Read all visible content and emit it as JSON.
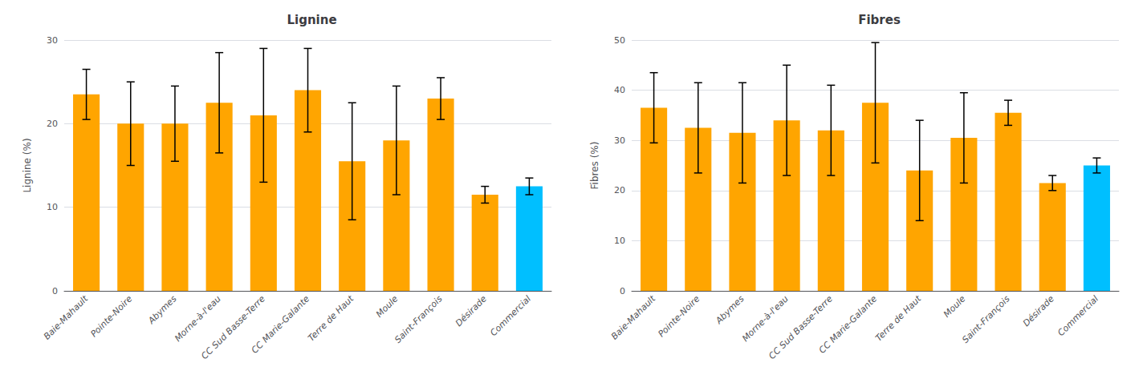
{
  "chart_data": [
    {
      "type": "bar",
      "title": "Lignine",
      "ylabel": "Lignine (%)",
      "categories": [
        "Baie-Mahault",
        "Pointe-Noire",
        "Abymes",
        "Morne-à-l'eau",
        "CC Sud Basse-Terre",
        "CC Marie-Galante",
        "Terre de Haut",
        "Moule",
        "Saint-François",
        "Désirade",
        "Commercial"
      ],
      "values": [
        23.5,
        20.0,
        20.0,
        22.5,
        21.0,
        24.0,
        15.5,
        18.0,
        23.0,
        11.5,
        12.5
      ],
      "errors_upper": [
        3.0,
        5.0,
        4.5,
        6.0,
        8.0,
        5.0,
        7.0,
        6.5,
        2.5,
        1.0,
        1.0
      ],
      "errors_lower": [
        3.0,
        5.0,
        4.5,
        6.0,
        8.0,
        5.0,
        7.0,
        6.5,
        2.5,
        1.0,
        1.0
      ],
      "colors": [
        "#FFA500",
        "#FFA500",
        "#FFA500",
        "#FFA500",
        "#FFA500",
        "#FFA500",
        "#FFA500",
        "#FFA500",
        "#FFA500",
        "#FFA500",
        "#00BFFF"
      ],
      "ylim": [
        0,
        30
      ],
      "yticks": [
        0,
        10,
        20,
        30
      ],
      "grid": true
    },
    {
      "type": "bar",
      "title": "Fibres",
      "ylabel": "Fibres (%)",
      "categories": [
        "Baie-Mahault",
        "Pointe-Noire",
        "Abymes",
        "Morne-à-l'eau",
        "CC Sud Basse-Terre",
        "CC Marie-Galante",
        "Terre de Haut",
        "Moule",
        "Saint-François",
        "Désirade",
        "Commercial"
      ],
      "values": [
        36.5,
        32.5,
        31.5,
        34.0,
        32.0,
        37.5,
        24.0,
        30.5,
        35.5,
        21.5,
        25.0
      ],
      "errors_upper": [
        7.0,
        9.0,
        10.0,
        11.0,
        9.0,
        12.0,
        10.0,
        9.0,
        2.5,
        1.5,
        1.5
      ],
      "errors_lower": [
        7.0,
        9.0,
        10.0,
        11.0,
        9.0,
        12.0,
        10.0,
        9.0,
        2.5,
        1.5,
        1.5
      ],
      "colors": [
        "#FFA500",
        "#FFA500",
        "#FFA500",
        "#FFA500",
        "#FFA500",
        "#FFA500",
        "#FFA500",
        "#FFA500",
        "#FFA500",
        "#FFA500",
        "#00BFFF"
      ],
      "ylim": [
        0,
        50
      ],
      "yticks": [
        0,
        10,
        20,
        30,
        40,
        50
      ],
      "grid": true
    }
  ]
}
